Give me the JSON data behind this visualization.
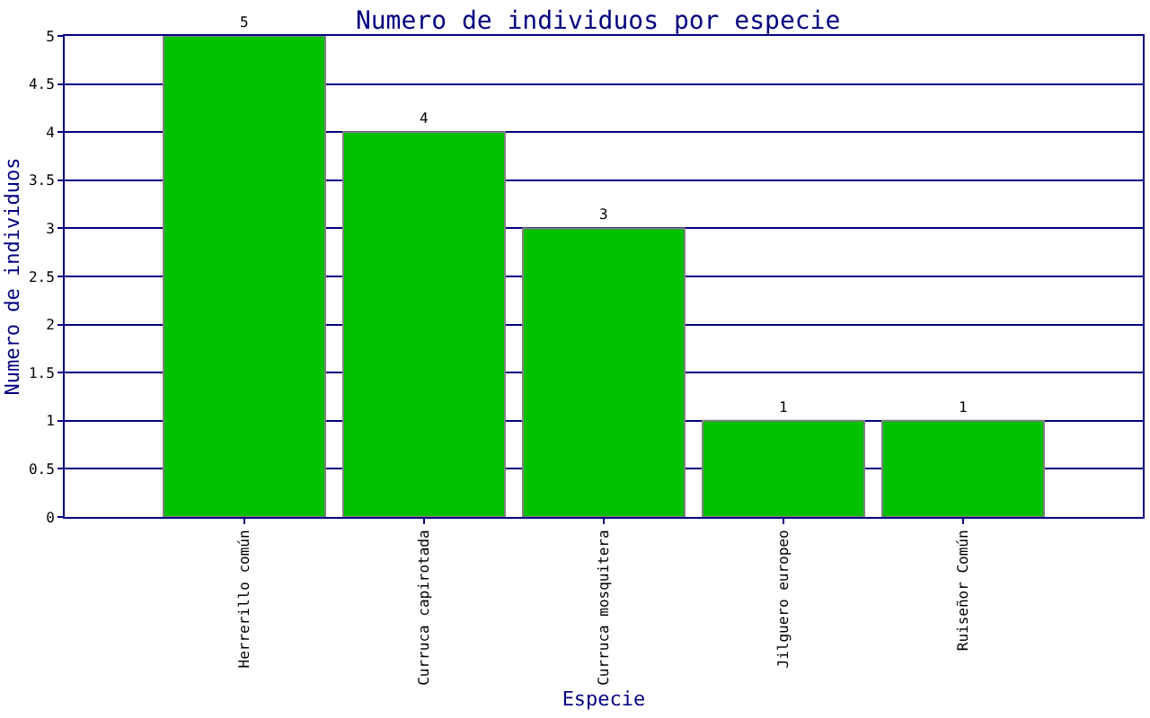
{
  "chart_data": {
    "type": "bar",
    "title": "Numero de individuos por especie",
    "xlabel": "Especie",
    "ylabel": "Numero de individuos",
    "categories": [
      "Herrerillo común",
      "Curruca capirotada",
      "Curruca mosquitera",
      "Jilguero europeo",
      "Ruiseñor Común"
    ],
    "values": [
      5,
      4,
      3,
      1,
      1
    ],
    "color": "#00c000",
    "ylim": [
      0,
      5
    ],
    "yticks": [
      0,
      0.5,
      1,
      1.5,
      2,
      2.5,
      3,
      3.5,
      4,
      4.5,
      5
    ],
    "grid": "y",
    "data_labels": true
  }
}
